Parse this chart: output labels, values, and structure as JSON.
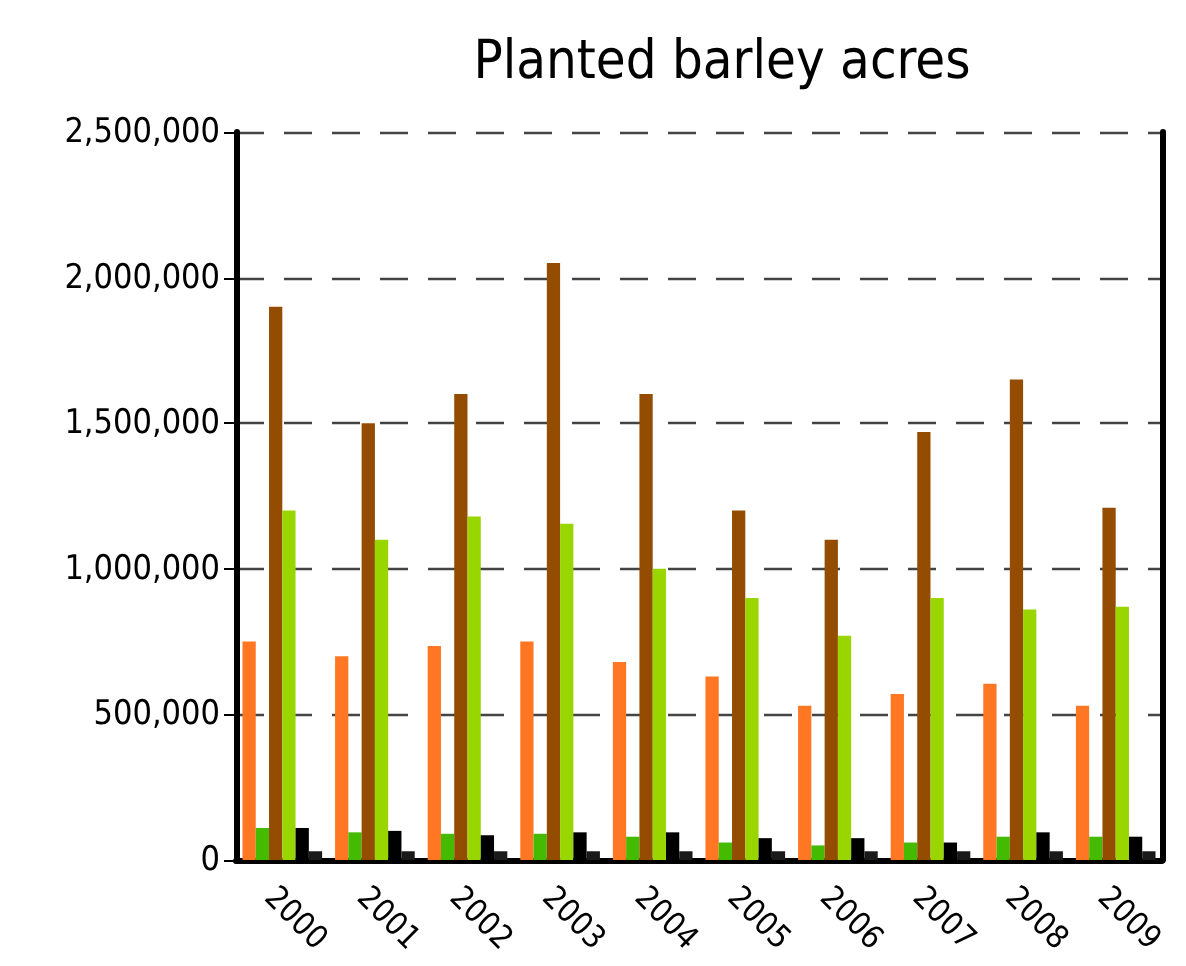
{
  "chart_data": {
    "type": "bar",
    "title": "Planted barley acres",
    "categories": [
      "2000",
      "2001",
      "2002",
      "2003",
      "2004",
      "2005",
      "2006",
      "2007",
      "2008",
      "2009"
    ],
    "series": [
      {
        "color": "#ff7722",
        "values": [
          750000,
          700000,
          735000,
          750000,
          680000,
          630000,
          530000,
          570000,
          605000,
          530000
        ]
      },
      {
        "color": "#44bb00",
        "values": [
          110000,
          95000,
          90000,
          90000,
          80000,
          60000,
          50000,
          60000,
          80000,
          80000
        ]
      },
      {
        "color": "#944c00",
        "values": [
          1900000,
          1500000,
          1600000,
          2050000,
          1600000,
          1200000,
          1100000,
          1470000,
          1650000,
          1210000
        ]
      },
      {
        "color": "#99d600",
        "values": [
          1200000,
          1100000,
          1180000,
          1155000,
          1000000,
          900000,
          770000,
          900000,
          860000,
          870000
        ]
      },
      {
        "color": "#000000",
        "values": [
          110000,
          100000,
          85000,
          95000,
          95000,
          75000,
          75000,
          60000,
          95000,
          80000
        ]
      },
      {
        "color": "#1a1a1a",
        "values": [
          30000,
          30000,
          30000,
          30000,
          30000,
          30000,
          30000,
          30000,
          30000,
          30000
        ]
      }
    ],
    "ylim": [
      0,
      2500000
    ],
    "yticks": [
      0,
      {
        "value": 500000,
        "label": "500,000"
      },
      {
        "value": 1000000,
        "label": "1,000,000"
      },
      {
        "value": 1500000,
        "label": "1,500,000"
      },
      {
        "value": 2000000,
        "label": "2,000,000"
      },
      {
        "value": 2500000,
        "label": "2,500,000"
      }
    ],
    "grid": "y"
  }
}
